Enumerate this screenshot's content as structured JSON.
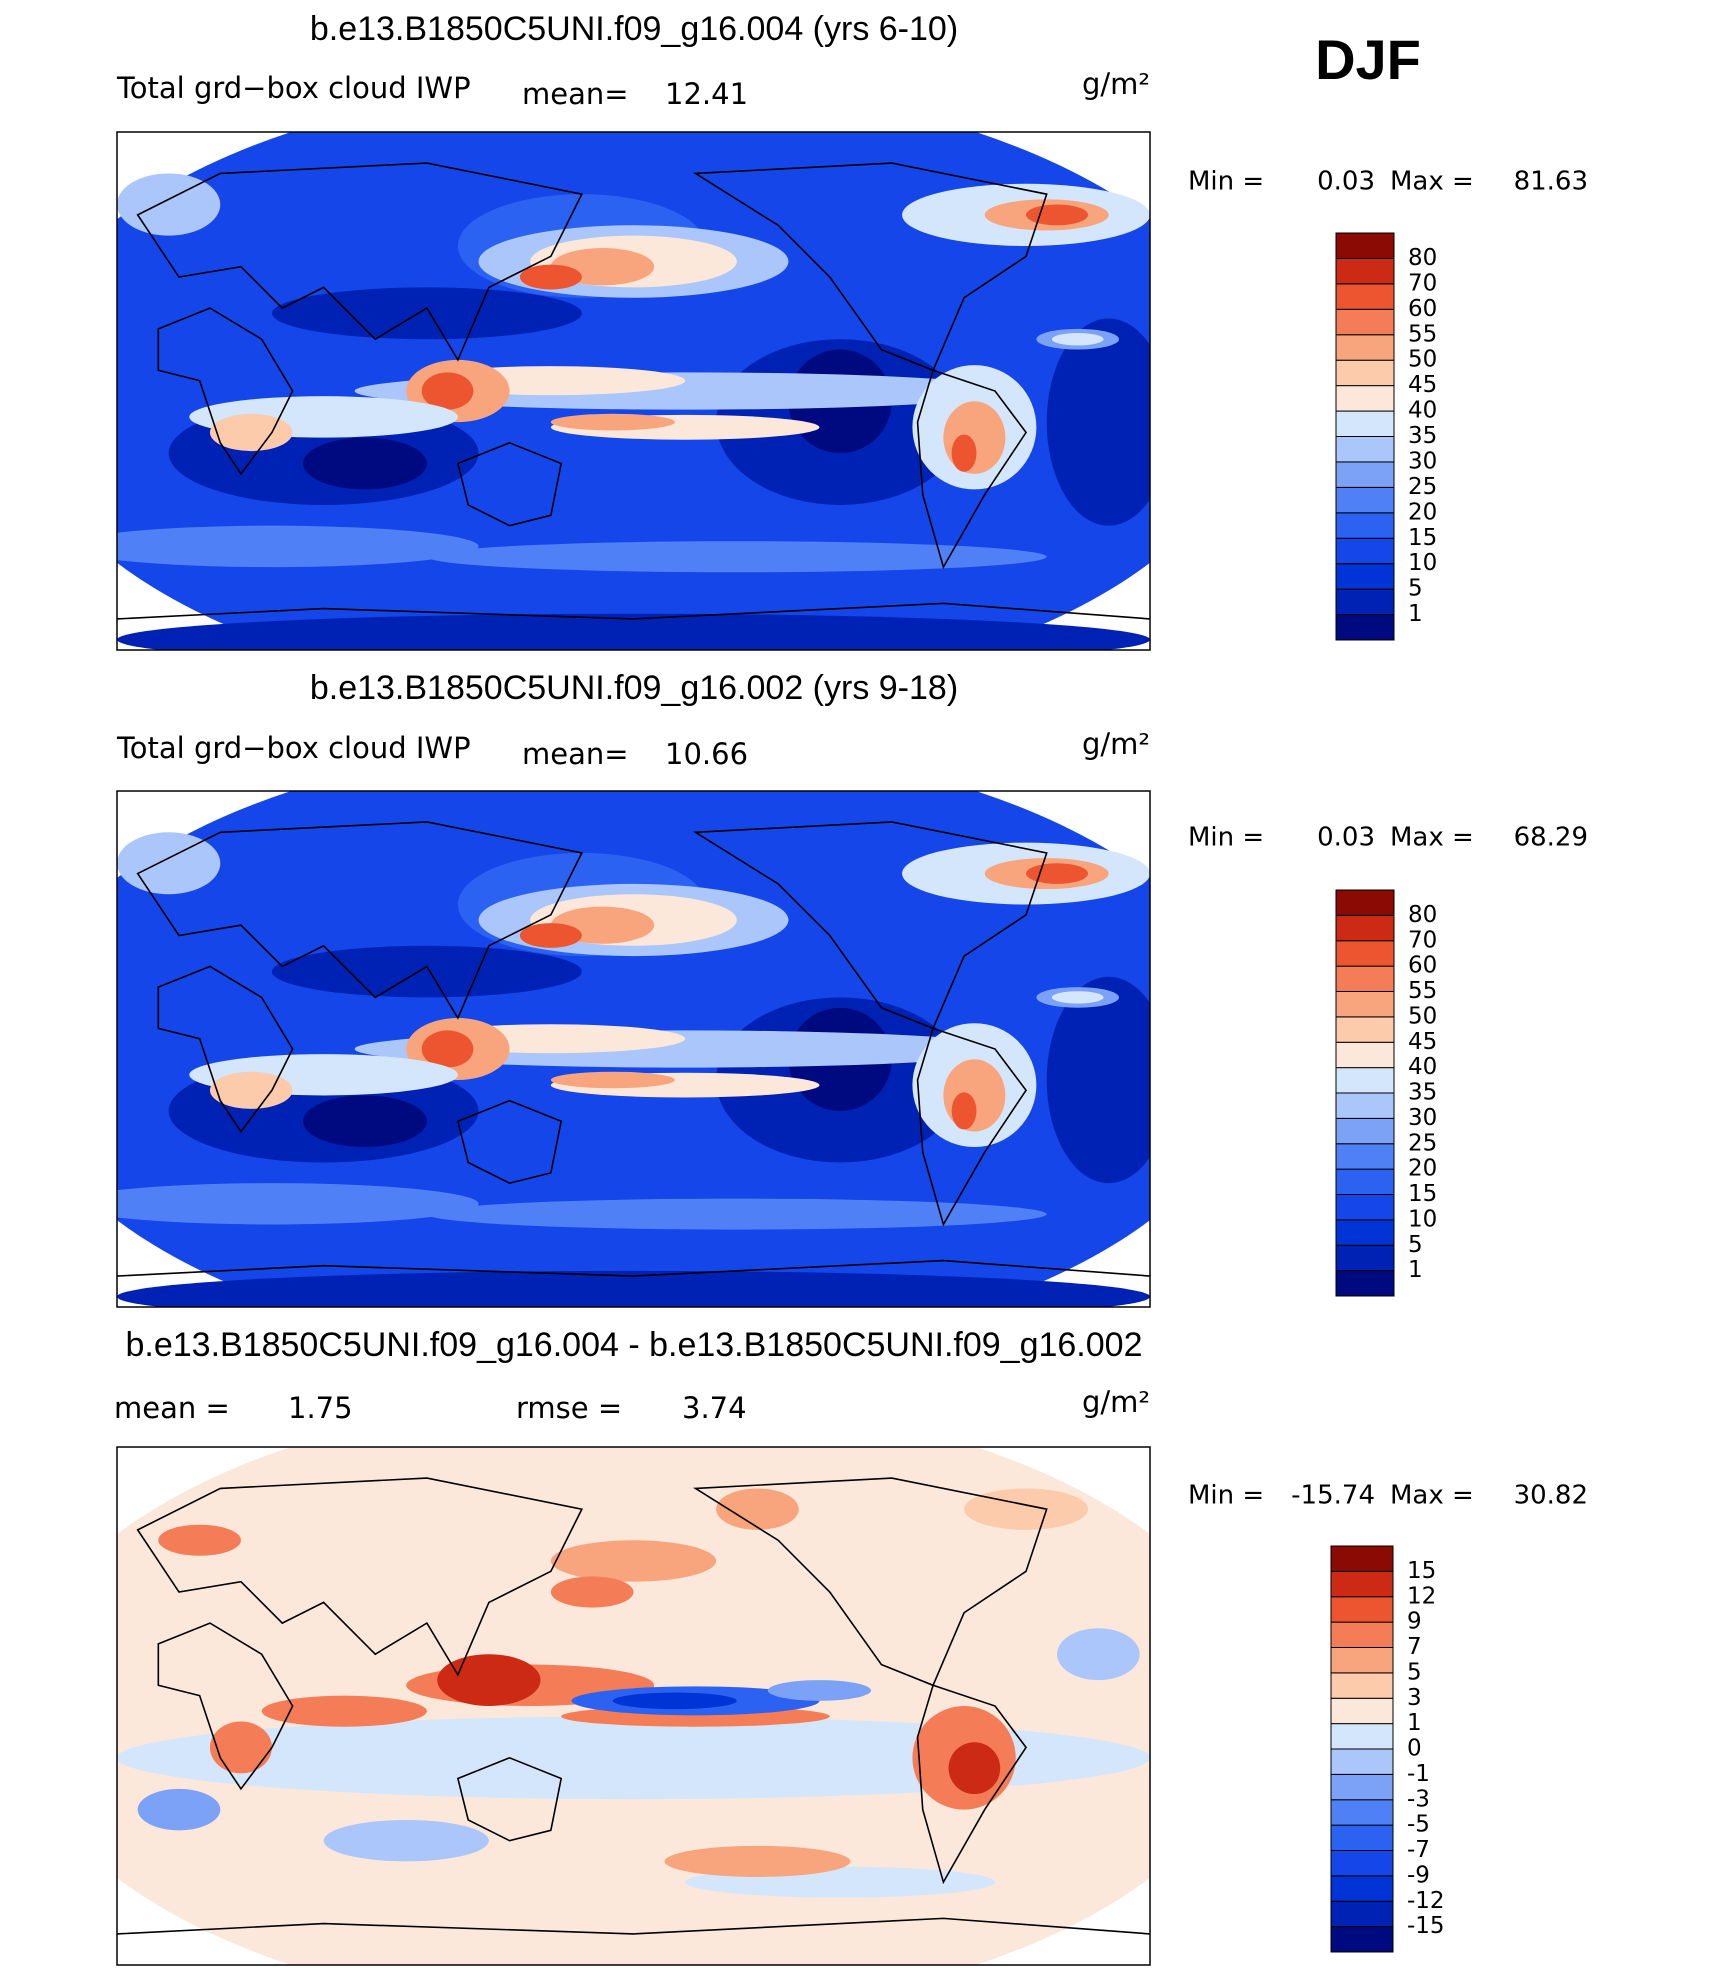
{
  "season": "DJF",
  "panels": [
    {
      "title": "b.e13.B1850C5UNI.f09_g16.004 (yrs 6-10)",
      "field": "Total grd−box cloud IWP",
      "mean_label": "mean=",
      "mean": 12.41,
      "units": "g/m²",
      "min_label": "Min =",
      "min": 0.03,
      "max_label": "Max =",
      "max": 81.63,
      "levels": [
        1,
        5,
        10,
        15,
        20,
        25,
        30,
        35,
        40,
        45,
        50,
        55,
        60,
        70,
        80
      ],
      "colors": [
        "#000a80",
        "#0022b4",
        "#0034d6",
        "#1446ea",
        "#2c62f2",
        "#5080f6",
        "#7ca2f8",
        "#aac6fa",
        "#d4e6fb",
        "#fce8da",
        "#fbcbab",
        "#f8a47c",
        "#f47c56",
        "#ec5530",
        "#cc2a14",
        "#8c0a04"
      ]
    },
    {
      "title": "b.e13.B1850C5UNI.f09_g16.002 (yrs 9-18)",
      "field": "Total grd−box cloud IWP",
      "mean_label": "mean=",
      "mean": 10.66,
      "units": "g/m²",
      "min_label": "Min =",
      "min": 0.03,
      "max_label": "Max =",
      "max": 68.29,
      "levels": [
        1,
        5,
        10,
        15,
        20,
        25,
        30,
        35,
        40,
        45,
        50,
        55,
        60,
        70,
        80
      ],
      "colors": [
        "#000a80",
        "#0022b4",
        "#0034d6",
        "#1446ea",
        "#2c62f2",
        "#5080f6",
        "#7ca2f8",
        "#aac6fa",
        "#d4e6fb",
        "#fce8da",
        "#fbcbab",
        "#f8a47c",
        "#f47c56",
        "#ec5530",
        "#cc2a14",
        "#8c0a04"
      ]
    },
    {
      "title": "b.e13.B1850C5UNI.f09_g16.004 - b.e13.B1850C5UNI.f09_g16.002",
      "mean_label": "mean =",
      "mean": 1.75,
      "rmse_label": "rmse =",
      "rmse": 3.74,
      "units": "g/m²",
      "min_label": "Min =",
      "min": -15.74,
      "max_label": "Max =",
      "max": 30.82,
      "levels": [
        -15,
        -12,
        -9,
        -7,
        -5,
        -3,
        -1,
        0,
        1,
        3,
        5,
        7,
        9,
        12,
        15
      ],
      "colors": [
        "#000a80",
        "#0022b4",
        "#0034d6",
        "#1446ea",
        "#2c62f2",
        "#5080f6",
        "#7ca2f8",
        "#aac6fa",
        "#d4e6fb",
        "#fce8da",
        "#fbcbab",
        "#f8a47c",
        "#f47c56",
        "#ec5530",
        "#cc2a14",
        "#8c0a04"
      ]
    }
  ]
}
